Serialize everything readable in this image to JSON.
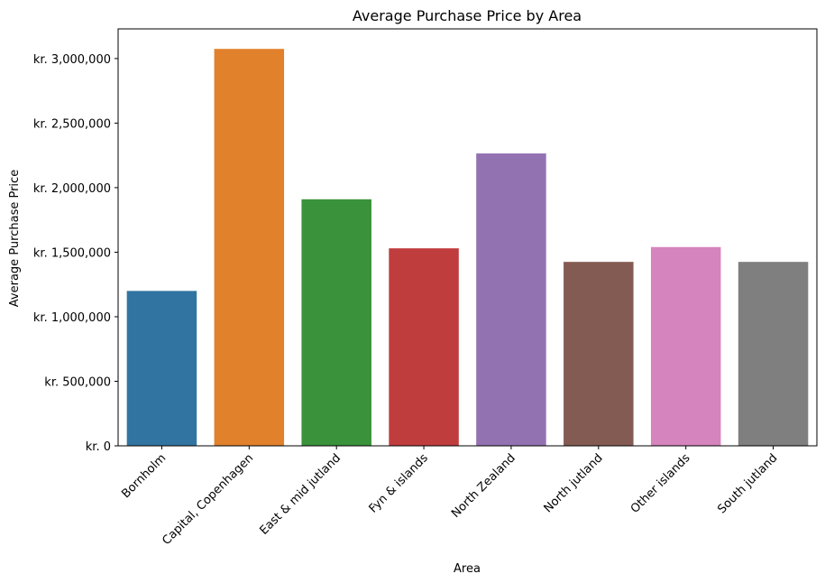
{
  "chart_data": {
    "type": "bar",
    "title": "Average Purchase Price by Area",
    "xlabel": "Area",
    "ylabel": "Average Purchase Price",
    "ylim": [
      0,
      3230000
    ],
    "categories": [
      "Bornholm",
      "Capital, Copenhagen",
      "East & mid jutland",
      "Fyn & islands",
      "North Zealand",
      "North jutland",
      "Other islands",
      "South jutland"
    ],
    "values": [
      1200000,
      3075000,
      1910000,
      1530000,
      2265000,
      1425000,
      1540000,
      1425000
    ],
    "colors": [
      "#3274a1",
      "#e1812c",
      "#3a923a",
      "#c03d3e",
      "#9372b2",
      "#845b53",
      "#d684bd",
      "#7f7f7f"
    ],
    "yticks": [
      0,
      500000,
      1000000,
      1500000,
      2000000,
      2500000,
      3000000
    ],
    "ytick_labels": [
      "kr. 0",
      "kr. 500,000",
      "kr. 1,000,000",
      "kr. 1,500,000",
      "kr. 2,000,000",
      "kr. 2,500,000",
      "kr. 3,000,000"
    ],
    "grid": false,
    "legend": "none"
  }
}
